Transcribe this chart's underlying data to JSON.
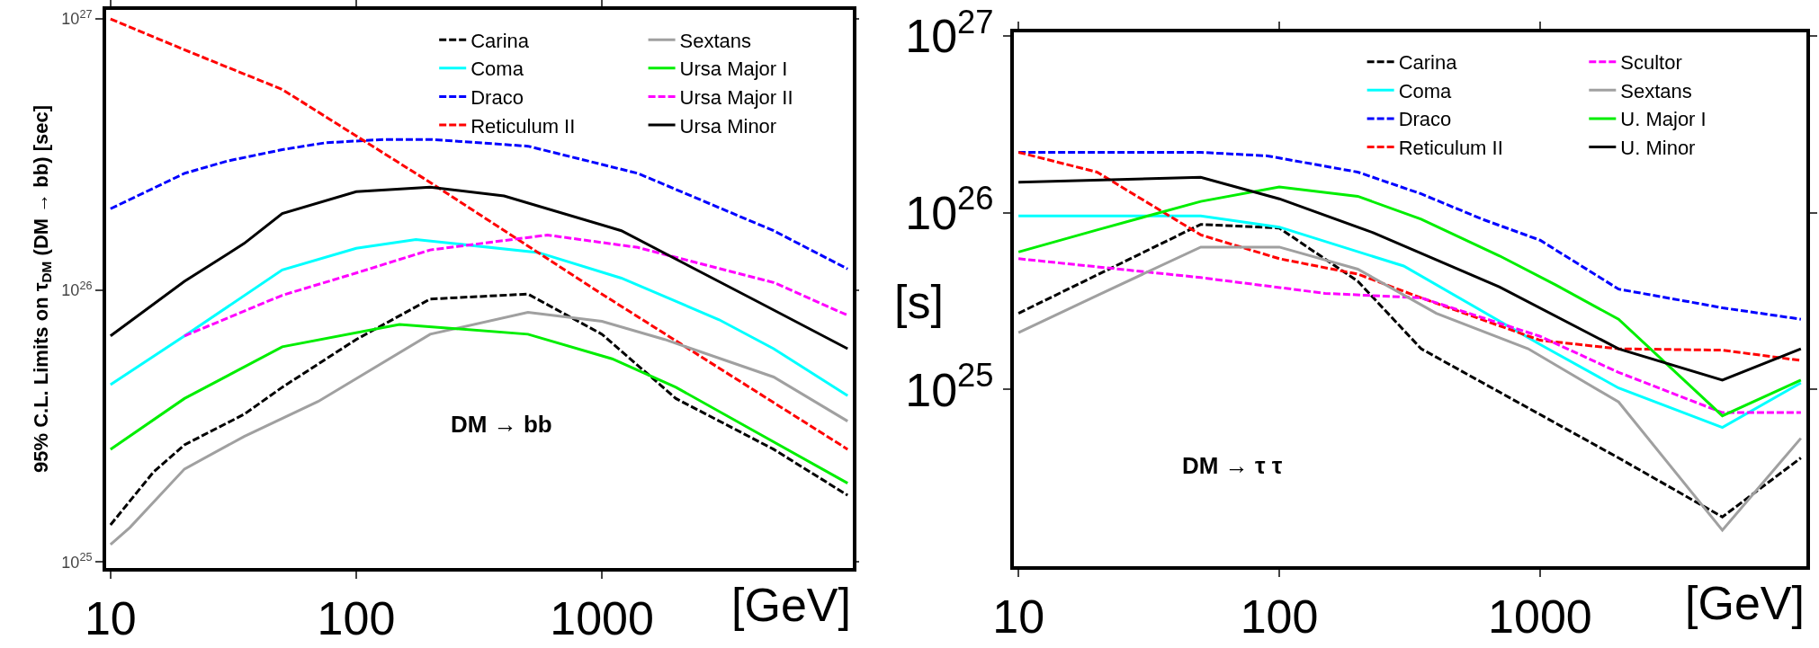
{
  "chart_data": [
    {
      "type": "line",
      "log": "xy",
      "xlabel": "[GeV]",
      "ylabel": "95% C.L. Limits on τ$_{DM}$ (DM → bb) [sec]",
      "legend": "top right",
      "annotations": [
        "DM → bb"
      ],
      "xlim": [
        9.6,
        10500
      ],
      "xticks": [
        10,
        100,
        1000
      ],
      "ylim": [
        9.5e+24,
        1.08e+27
      ],
      "yticks": [
        {
          "value": 1e+25,
          "label": "10$^{25}$"
        },
        {
          "value": 1e+26,
          "label": "10$^{26}$"
        },
        {
          "value": 1e+27,
          "label": "10$^{27}$"
        }
      ],
      "series": [
        {
          "name": "Carina",
          "color": "#000000",
          "line_style": "dashed",
          "x": [
            10,
            15,
            20,
            35,
            50,
            100,
            200,
            500,
            1000,
            2000,
            5000,
            10000
          ],
          "values": [
            1.37e+25,
            2.15e+25,
            2.7e+25,
            3.5e+25,
            4.4e+25,
            6.6e+25,
            9.3e+25,
            9.7e+25,
            6.9e+25,
            4e+25,
            2.6e+25,
            1.76e+25
          ]
        },
        {
          "name": "Coma",
          "color": "#00ffff",
          "line_style": "solid",
          "x": [
            10,
            20,
            50,
            100,
            175,
            550,
            1200,
            3000,
            5000,
            10000
          ],
          "values": [
            4.5e+25,
            6.8e+25,
            1.19e+26,
            1.43e+26,
            1.54e+26,
            1.38e+26,
            1.11e+26,
            7.8e+25,
            6.1e+25,
            4.1e+25
          ]
        },
        {
          "name": "Draco",
          "color": "#0000ff",
          "line_style": "dashed",
          "x": [
            10,
            20,
            30,
            50,
            75,
            130,
            200,
            500,
            1400,
            5000,
            10000
          ],
          "values": [
            2e+26,
            2.7e+26,
            3e+26,
            3.3e+26,
            3.5e+26,
            3.6e+26,
            3.6e+26,
            3.4e+26,
            2.7e+26,
            1.66e+26,
            1.2e+26
          ]
        },
        {
          "name": "Reticulum II",
          "color": "#ff0000",
          "line_style": "dashed",
          "x": [
            10,
            20,
            50,
            200,
            1000,
            10000
          ],
          "values": [
            1e+27,
            7.7e+26,
            5.5e+26,
            2.5e+26,
            9.7e+25,
            2.6e+25
          ]
        },
        {
          "name": "Sextans",
          "color": "#a0a0a0",
          "line_style": "solid",
          "x": [
            10,
            12,
            20,
            35,
            70,
            200,
            500,
            1000,
            1800,
            5000,
            10000
          ],
          "values": [
            1.16e+25,
            1.34e+25,
            2.2e+25,
            2.9e+25,
            3.9e+25,
            6.9e+25,
            8.3e+25,
            7.7e+25,
            6.6e+25,
            4.8e+25,
            3.3e+25
          ]
        },
        {
          "name": "Ursa Major I",
          "color": "#00ee00",
          "line_style": "solid",
          "x": [
            10,
            20,
            50,
            150,
            500,
            1100,
            2000,
            10000
          ],
          "values": [
            2.6e+25,
            4e+25,
            6.2e+25,
            7.5e+25,
            6.9e+25,
            5.6e+25,
            4.4e+25,
            1.95e+25
          ]
        },
        {
          "name": "Ursa Major II",
          "color": "#ff00ff",
          "line_style": "dashed",
          "x": [
            20,
            50,
            100,
            200,
            600,
            1400,
            5000,
            10000
          ],
          "values": [
            6.8e+25,
            9.6e+25,
            1.16e+26,
            1.41e+26,
            1.6e+26,
            1.44e+26,
            1.07e+26,
            8.1e+25
          ]
        },
        {
          "name": "Ursa Minor",
          "color": "#000000",
          "line_style": "solid",
          "x": [
            10,
            20,
            35,
            50,
            100,
            200,
            400,
            1200,
            4400,
            10000
          ],
          "values": [
            6.8e+25,
            1.08e+26,
            1.49e+26,
            1.92e+26,
            2.31e+26,
            2.4e+26,
            2.23e+26,
            1.66e+26,
            9e+25,
            6.1e+25
          ]
        }
      ]
    },
    {
      "type": "line",
      "log": "xy",
      "xlabel": "[GeV]",
      "ylabel": "[s]",
      "legend": "top right",
      "annotations": [
        "DM → τ τ"
      ],
      "xlim": [
        9.6,
        10500
      ],
      "xticks": [
        10,
        100,
        1000
      ],
      "ylim": [
        1e+24,
        1.05e+27
      ],
      "yticks": [
        {
          "value": 1e+25,
          "label": "10$^{25}$"
        },
        {
          "value": 1e+26,
          "label": "10$^{26}$"
        },
        {
          "value": 1e+27,
          "label": "10$^{27}$"
        }
      ],
      "series": [
        {
          "name": "Carina",
          "color": "#000000",
          "line_style": "dashed",
          "x": [
            10,
            50,
            100,
            200,
            350,
            2000,
            5000,
            10000
          ],
          "values": [
            2.7e+25,
            8.6e+25,
            8.2e+25,
            4.1e+25,
            1.7e+25,
            4.1e+24,
            1.9e+24,
            4.1e+24
          ]
        },
        {
          "name": "Coma",
          "color": "#00ffff",
          "line_style": "solid",
          "x": [
            10,
            50,
            100,
            300,
            1000,
            2000,
            5000,
            10000
          ],
          "values": [
            9.6e+25,
            9.6e+25,
            8.3e+25,
            5e+25,
            1.8e+25,
            1.02e+25,
            6.1e+24,
            1.09e+25
          ]
        },
        {
          "name": "Draco",
          "color": "#0000ff",
          "line_style": "dashed",
          "x": [
            10,
            20,
            50,
            90,
            200,
            350,
            600,
            1000,
            2000,
            5000,
            10000
          ],
          "values": [
            2.2e+26,
            2.2e+26,
            2.2e+26,
            2.1e+26,
            1.7e+26,
            1.28e+26,
            9.2e+25,
            7e+25,
            3.7e+25,
            2.9e+25,
            2.5e+25
          ]
        },
        {
          "name": "Reticulum II",
          "color": "#ff0000",
          "line_style": "dashed",
          "x": [
            10,
            20,
            50,
            100,
            200,
            350,
            1000,
            2000,
            5000,
            10000
          ],
          "values": [
            2.2e+26,
            1.7e+26,
            7.5e+25,
            5.5e+25,
            4.5e+25,
            3.3e+25,
            1.9e+25,
            1.7e+25,
            1.67e+25,
            1.46e+25
          ]
        },
        {
          "name": "Scultor",
          "color": "#ff00ff",
          "line_style": "dashed",
          "x": [
            10,
            50,
            150,
            350,
            1000,
            2000,
            5000,
            10000
          ],
          "values": [
            5.5e+25,
            4.3e+25,
            3.5e+25,
            3.3e+25,
            2e+25,
            1.25e+25,
            7.4e+24,
            7.4e+24
          ]
        },
        {
          "name": "Sextans",
          "color": "#a0a0a0",
          "line_style": "solid",
          "x": [
            10,
            20,
            50,
            100,
            200,
            400,
            900,
            2000,
            5000,
            10000
          ],
          "values": [
            2.1e+25,
            3.4e+25,
            6.4e+25,
            6.4e+25,
            4.8e+25,
            2.7e+25,
            1.7e+25,
            8.5e+24,
            1.6e+24,
            5.3e+24
          ]
        },
        {
          "name": "U. Major I",
          "color": "#00ee00",
          "line_style": "solid",
          "x": [
            10,
            20,
            50,
            100,
            200,
            350,
            700,
            1150,
            2000,
            5000,
            10000
          ],
          "values": [
            6e+25,
            8e+25,
            1.16e+26,
            1.4e+26,
            1.24e+26,
            9.2e+25,
            5.7e+25,
            3.9e+25,
            2.5e+25,
            7.1e+24,
            1.13e+25
          ]
        },
        {
          "name": "U. Minor",
          "color": "#000000",
          "line_style": "solid",
          "x": [
            10,
            50,
            100,
            230,
            700,
            2000,
            5000,
            10000
          ],
          "values": [
            1.49e+26,
            1.59e+26,
            1.2e+26,
            7.7e+25,
            3.8e+25,
            1.7e+25,
            1.13e+25,
            1.7e+25
          ]
        }
      ]
    }
  ]
}
